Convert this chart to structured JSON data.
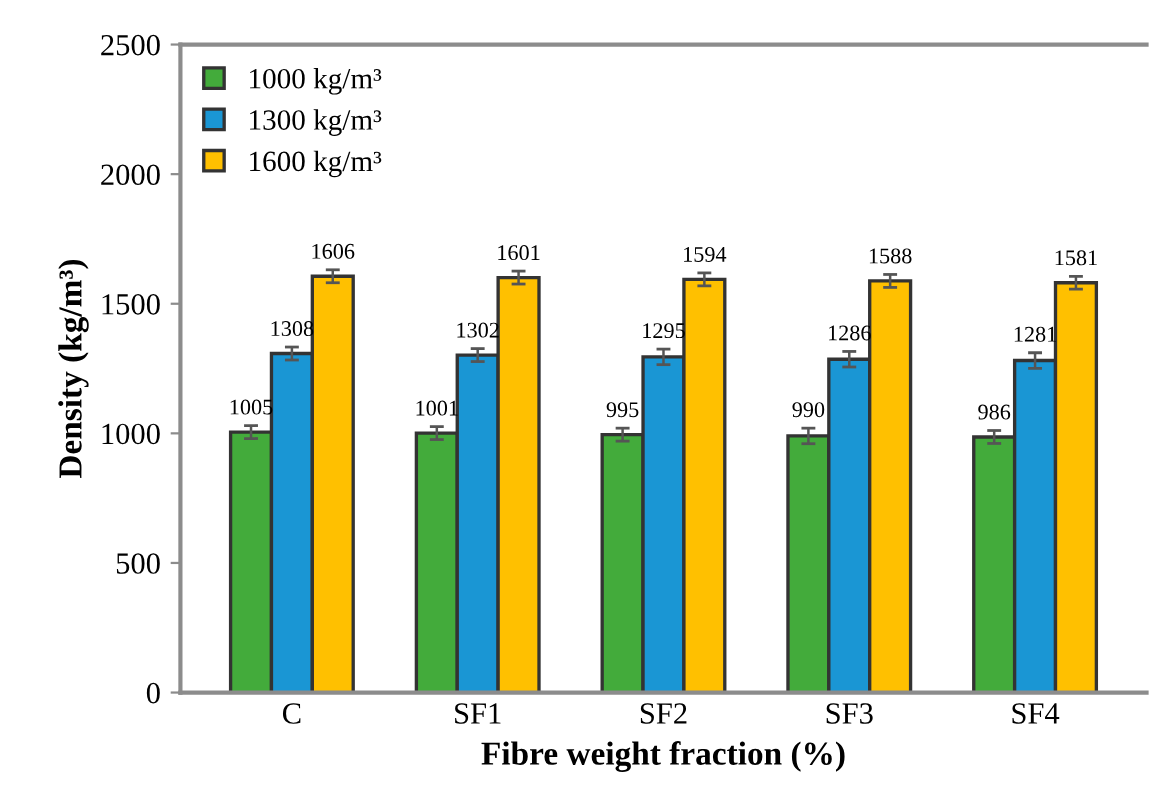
{
  "chart_data": {
    "type": "bar",
    "xlabel": "Fibre weight fraction (%)",
    "ylabel": "Density (kg/m³)",
    "categories": [
      "C",
      "SF1",
      "SF2",
      "SF3",
      "SF4"
    ],
    "series": [
      {
        "name": "1000 kg/m³",
        "color": "#43ab3b",
        "values": [
          1005,
          1001,
          995,
          990,
          986
        ],
        "errors": [
          25,
          25,
          25,
          30,
          25
        ]
      },
      {
        "name": "1300 kg/m³",
        "color": "#1a96d4",
        "values": [
          1308,
          1302,
          1295,
          1286,
          1281
        ],
        "errors": [
          25,
          25,
          30,
          30,
          30
        ]
      },
      {
        "name": "1600 kg/m³",
        "color": "#ffc000",
        "values": [
          1606,
          1601,
          1594,
          1588,
          1581
        ],
        "errors": [
          25,
          25,
          25,
          25,
          25
        ]
      }
    ],
    "data_labels": true,
    "ylim": [
      0,
      2500
    ],
    "yticks": [
      0,
      500,
      1000,
      1500,
      2000,
      2500
    ],
    "grid": false,
    "legend": "top left"
  }
}
